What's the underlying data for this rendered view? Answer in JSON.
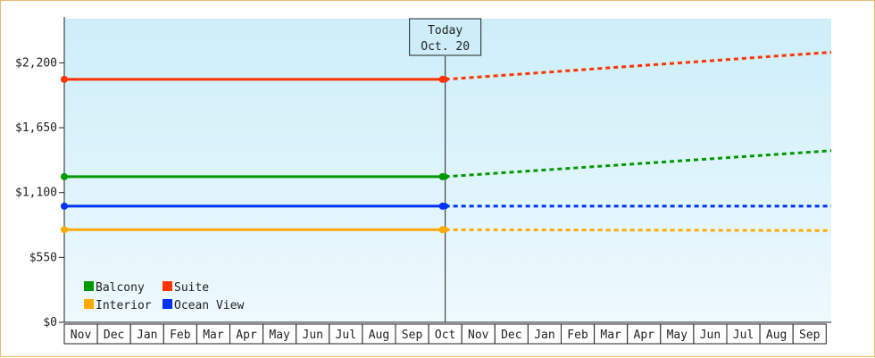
{
  "chart_data": {
    "type": "line",
    "y_ticks": [
      "$0",
      "$550",
      "$1,100",
      "$1,650",
      "$2,200"
    ],
    "ylim": [
      0,
      2574
    ],
    "categories": [
      "Nov",
      "Dec",
      "Jan",
      "Feb",
      "Mar",
      "Apr",
      "May",
      "Jun",
      "Jul",
      "Aug",
      "Sep",
      "Oct",
      "Nov",
      "Dec",
      "Jan",
      "Feb",
      "Mar",
      "Apr",
      "May",
      "Jun",
      "Jul",
      "Aug",
      "Sep"
    ],
    "today": {
      "line1": "Today",
      "line2": "Oct. 20",
      "index": 11.0
    },
    "series": [
      {
        "name": "Suite",
        "color": "#ff3300",
        "historical": 2060,
        "projected_end": 2290
      },
      {
        "name": "Balcony",
        "color": "#009900",
        "historical": 1235,
        "projected_end": 1455
      },
      {
        "name": "Ocean View",
        "color": "#0033ff",
        "historical": 985,
        "projected_end": 985
      },
      {
        "name": "Interior",
        "color": "#ffaa00",
        "historical": 785,
        "projected_end": 778
      }
    ],
    "legend": [
      {
        "label": "Balcony",
        "color": "#009900"
      },
      {
        "label": "Suite",
        "color": "#ff3300"
      },
      {
        "label": "Interior",
        "color": "#ffaa00"
      },
      {
        "label": "Ocean View",
        "color": "#0033ff"
      }
    ],
    "legend_position": "bottom-left",
    "background_gradient": [
      "#cdeef9",
      "#eef9fd"
    ]
  }
}
